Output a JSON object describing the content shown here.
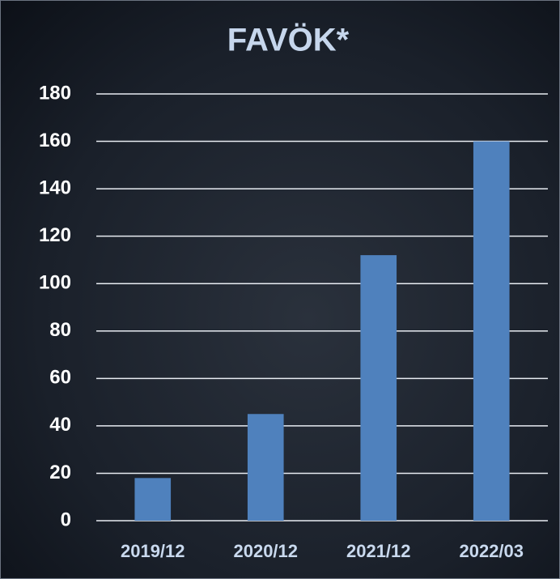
{
  "chart_data": {
    "type": "bar",
    "title": "FAVÖK*",
    "categories": [
      "2019/12",
      "2020/12",
      "2021/12",
      "2022/03"
    ],
    "values": [
      18,
      45,
      112,
      160
    ],
    "color": "#4f81bd",
    "ylim": [
      0,
      180
    ],
    "yticks": [
      0,
      20,
      40,
      60,
      80,
      100,
      120,
      140,
      160,
      180
    ],
    "grid": true
  }
}
